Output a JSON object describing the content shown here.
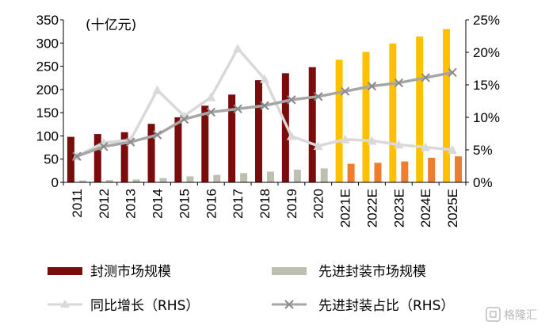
{
  "chart_data": {
    "type": "bar",
    "unit_label": "(十亿元)",
    "categories": [
      "2011",
      "2012",
      "2013",
      "2014",
      "2015",
      "2016",
      "2017",
      "2018",
      "2019",
      "2020",
      "2021E",
      "2022E",
      "2023E",
      "2024E",
      "2025E"
    ],
    "forecast_from_index": 10,
    "y_left": {
      "min": 0,
      "max": 350,
      "ticks": [
        "0",
        "50",
        "100",
        "150",
        "200",
        "250",
        "300",
        "350"
      ]
    },
    "y_right": {
      "min": 0,
      "max": 25,
      "ticks": [
        "0%",
        "5%",
        "10%",
        "15%",
        "20%",
        "25%"
      ]
    },
    "series": [
      {
        "name": "封测市场规模",
        "kind": "bar",
        "axis": "left",
        "color": "#7b0c0c",
        "forecast_color": "#ffc000",
        "values": [
          98,
          104,
          108,
          126,
          140,
          165,
          189,
          220,
          235,
          248,
          264,
          281,
          299,
          314,
          330
        ]
      },
      {
        "name": "先进封装市场规模",
        "kind": "bar",
        "axis": "left",
        "color": "#bfbfaf",
        "forecast_color": "#ed7d31",
        "values": [
          4,
          5,
          6,
          9,
          13,
          16,
          20,
          23,
          27,
          30,
          40,
          42,
          45,
          53,
          56
        ]
      },
      {
        "name": "同比增长（RHS）",
        "kind": "line",
        "axis": "right",
        "color": "#d9d9d9",
        "marker": "triangle",
        "values": [
          4.0,
          6.1,
          6.5,
          14.2,
          10.2,
          13.1,
          20.6,
          15.9,
          7.1,
          5.6,
          6.6,
          6.4,
          5.8,
          5.4,
          5.0
        ]
      },
      {
        "name": "先进封装占比（RHS）",
        "kind": "line",
        "axis": "right",
        "color": "#a6a6a6",
        "marker": "x",
        "values": [
          4.0,
          5.5,
          6.2,
          7.3,
          9.7,
          10.8,
          11.3,
          11.8,
          12.7,
          13.2,
          14.0,
          14.8,
          15.3,
          16.1,
          16.9
        ]
      }
    ]
  },
  "watermark": {
    "icon": "gelonghui-logo-icon",
    "text": "格隆汇"
  }
}
